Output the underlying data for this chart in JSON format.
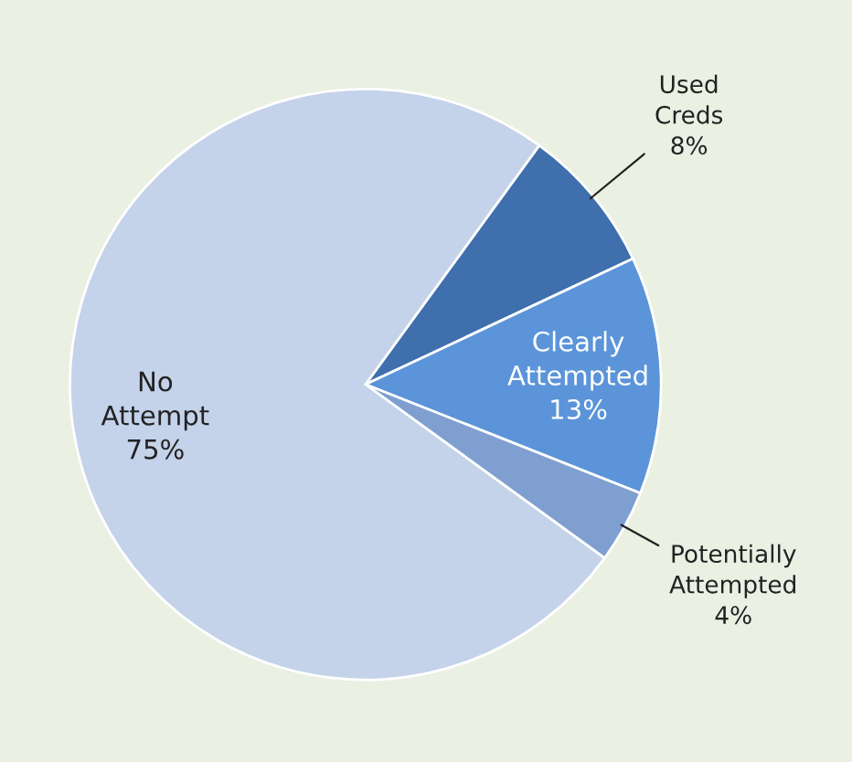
{
  "chart_data": {
    "type": "pie",
    "categories": [
      "Used Creds",
      "Clearly Attempted",
      "Potentially Attempted",
      "No Attempt"
    ],
    "values": [
      8,
      13,
      4,
      75
    ],
    "value_labels": [
      "8%",
      "13%",
      "4%",
      "75%"
    ],
    "colors": [
      "#3f6fad",
      "#5b94d9",
      "#7f9fd0",
      "#c4d2ea"
    ]
  }
}
